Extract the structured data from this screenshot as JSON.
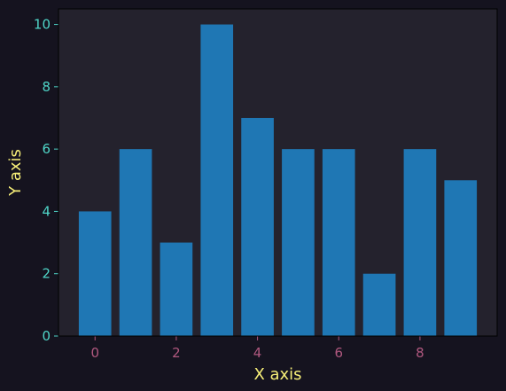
{
  "colors": {
    "figure_background": "#15131f",
    "plot_background": "#24222d",
    "bar": "#1f77b4",
    "x_tick": "#b0587f",
    "y_tick": "#4fd6c8",
    "axis_label": "#f7ef78",
    "spine": "#000000"
  },
  "chart_data": {
    "type": "bar",
    "title": "",
    "xlabel": "X axis",
    "ylabel": "Y axis",
    "x": [
      0,
      1,
      2,
      3,
      4,
      5,
      6,
      7,
      8,
      9
    ],
    "values": [
      4,
      6,
      3,
      10,
      7,
      6,
      6,
      2,
      6,
      5
    ],
    "xlim": [
      -0.9,
      9.9
    ],
    "ylim": [
      0,
      10.5
    ],
    "xticks": [
      0,
      2,
      4,
      6,
      8
    ],
    "yticks": [
      0,
      2,
      4,
      6,
      8,
      10
    ],
    "bar_width": 0.8,
    "grid": false,
    "legend": "none"
  }
}
